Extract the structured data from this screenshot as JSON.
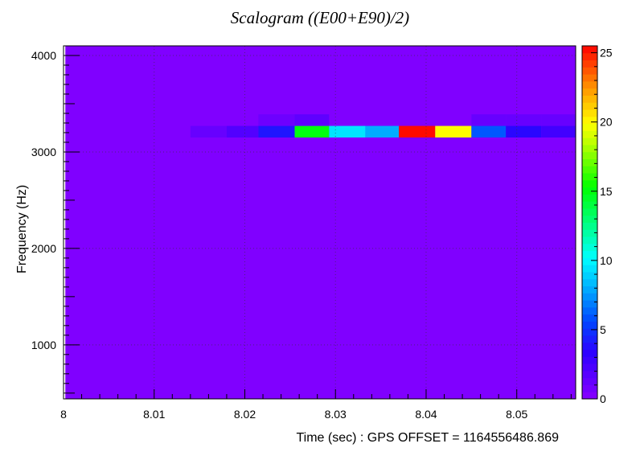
{
  "chart_data": {
    "type": "heatmap",
    "title": "Scalogram ((E00+E90)/2)",
    "xlabel": "Time (sec) : GPS OFFSET = 1164556486.869",
    "ylabel": "Frequency (Hz)",
    "xlim": [
      8.0,
      8.0565
    ],
    "ylim": [
      440,
      4100
    ],
    "x_ticks": [
      "8",
      "8.01",
      "8.02",
      "8.03",
      "8.04",
      "8.05"
    ],
    "x_tick_values": [
      8.0,
      8.01,
      8.02,
      8.03,
      8.04,
      8.05
    ],
    "y_ticks": [
      "1000",
      "2000",
      "3000",
      "4000"
    ],
    "y_tick_values": [
      1000,
      2000,
      3000,
      4000
    ],
    "z_ticks": [
      "0",
      "5",
      "10",
      "15",
      "20",
      "25"
    ],
    "z_tick_values": [
      0,
      5,
      10,
      15,
      20,
      25
    ],
    "zlim": [
      0,
      25.5
    ],
    "grid": true,
    "background_value": 0.3,
    "background_region": {
      "x": [
        8.0002,
        8.0565
      ],
      "y": [
        440,
        4100
      ]
    },
    "cells": [
      {
        "x0": 8.014,
        "x1": 8.018,
        "y0": 3150,
        "y1": 3270,
        "value": 1.2
      },
      {
        "x0": 8.018,
        "x1": 8.0215,
        "y0": 3150,
        "y1": 3270,
        "value": 2.0
      },
      {
        "x0": 8.0215,
        "x1": 8.0255,
        "y0": 3150,
        "y1": 3270,
        "value": 4.0
      },
      {
        "x0": 8.0255,
        "x1": 8.0293,
        "y0": 3150,
        "y1": 3270,
        "value": 15.0
      },
      {
        "x0": 8.0293,
        "x1": 8.0333,
        "y0": 3150,
        "y1": 3270,
        "value": 9.5
      },
      {
        "x0": 8.0333,
        "x1": 8.037,
        "y0": 3150,
        "y1": 3270,
        "value": 8.0
      },
      {
        "x0": 8.037,
        "x1": 8.041,
        "y0": 3150,
        "y1": 3270,
        "value": 25.3
      },
      {
        "x0": 8.041,
        "x1": 8.045,
        "y0": 3150,
        "y1": 3270,
        "value": 20.0
      },
      {
        "x0": 8.045,
        "x1": 8.0488,
        "y0": 3150,
        "y1": 3270,
        "value": 6.0
      },
      {
        "x0": 8.0488,
        "x1": 8.0527,
        "y0": 3150,
        "y1": 3270,
        "value": 3.5
      },
      {
        "x0": 8.0527,
        "x1": 8.0565,
        "y0": 3150,
        "y1": 3270,
        "value": 2.6
      },
      {
        "x0": 8.0215,
        "x1": 8.0255,
        "y0": 3270,
        "y1": 3390,
        "value": 1.0
      },
      {
        "x0": 8.0255,
        "x1": 8.0293,
        "y0": 3270,
        "y1": 3390,
        "value": 1.5
      },
      {
        "x0": 8.045,
        "x1": 8.0488,
        "y0": 3270,
        "y1": 3390,
        "value": 1.2
      },
      {
        "x0": 8.0488,
        "x1": 8.0527,
        "y0": 3270,
        "y1": 3390,
        "value": 1.2
      },
      {
        "x0": 8.0527,
        "x1": 8.0565,
        "y0": 3270,
        "y1": 3390,
        "value": 1.2
      }
    ]
  }
}
